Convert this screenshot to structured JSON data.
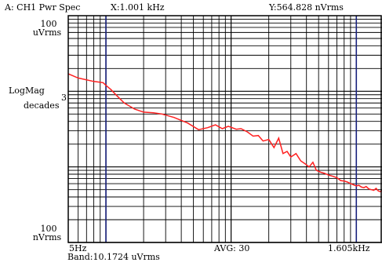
{
  "header": {
    "channel": "A: CH1 Pwr Spec",
    "x_readout": "X:1.001   kHz",
    "y_readout": "Y:564.828 nVrms"
  },
  "left_axis": {
    "top_value": "100",
    "top_unit": "uVrms",
    "scale_label": "LogMag",
    "scale_unit": "decades",
    "mid_tick": "3",
    "bottom_value": "100",
    "bottom_unit": "nVrms"
  },
  "footer": {
    "start_freq": "5Hz",
    "averaging": "AVG:   30",
    "stop_freq": "1.605kHz",
    "band": "Band:10.1724 uVrms"
  },
  "colors": {
    "grid": "#000000",
    "trace": "#ff2020",
    "marker": "#1a237e",
    "background": "#ffffff"
  },
  "chart_data": {
    "type": "line",
    "x_scale": "log",
    "y_scale": "log",
    "xlim_hz": [
      5,
      1605
    ],
    "ylim_vrms": [
      1e-07,
      0.0001
    ],
    "grid": true,
    "markers_hz": [
      10,
      1001
    ],
    "series": [
      {
        "x_hz": [
          5,
          6,
          8,
          9.5,
          10,
          11,
          12,
          14,
          17,
          20,
          24,
          28,
          35,
          45,
          55,
          65,
          75,
          85,
          95,
          110,
          120,
          135,
          150,
          165,
          180,
          200,
          220,
          240,
          260,
          280,
          300,
          330,
          360,
          390,
          420,
          450,
          480,
          520,
          560,
          600,
          650,
          700,
          750,
          800,
          850,
          900,
          950,
          1000,
          1050,
          1100,
          1150,
          1200,
          1260,
          1320,
          1380,
          1440,
          1500,
          1560,
          1605
        ],
        "y_vrms": [
          1.7e-05,
          1.5e-05,
          1.35e-05,
          1.3e-05,
          1.2e-05,
          1.05e-05,
          9e-06,
          7e-06,
          5.8e-06,
          5.3e-06,
          5.2e-06,
          5e-06,
          4.5e-06,
          3.8e-06,
          3.1e-06,
          3.3e-06,
          3.6e-06,
          3.2e-06,
          3.45e-06,
          3.15e-06,
          3.2e-06,
          2.9e-06,
          2.55e-06,
          2.6e-06,
          2.2e-06,
          2.3e-06,
          1.8e-06,
          2.4e-06,
          1.5e-06,
          1.6e-06,
          1.35e-06,
          1.5e-06,
          1.2e-06,
          1.1e-06,
          1e-06,
          1.15e-06,
          9e-07,
          8.5e-07,
          8.2e-07,
          7.8e-07,
          7.5e-07,
          7.2e-07,
          6.6e-07,
          6.5e-07,
          6.3e-07,
          6e-07,
          5.8e-07,
          5.6e-07,
          5.7e-07,
          5.4e-07,
          5.3e-07,
          5.5e-07,
          5.1e-07,
          5e-07,
          4.9e-07,
          5.2e-07,
          4.8e-07,
          4.7e-07,
          4.9e-07
        ]
      }
    ]
  }
}
